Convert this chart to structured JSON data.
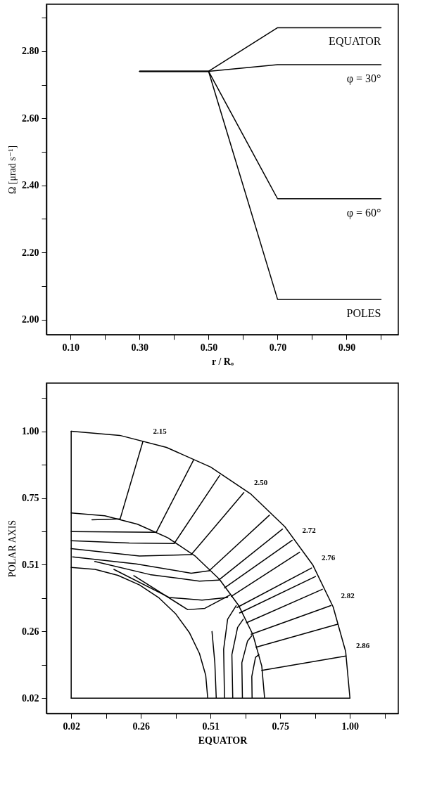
{
  "chart_data": [
    {
      "type": "line",
      "xlabel": "r / Rₒ",
      "ylabel": "Ω [μrad s⁻¹]",
      "xlim": [
        0.03,
        1.05
      ],
      "ylim": [
        1.955,
        2.94
      ],
      "xticks": [
        {
          "value": 0.1,
          "label": "0.10"
        },
        {
          "value": 0.2,
          "label": null
        },
        {
          "value": 0.3,
          "label": "0.30"
        },
        {
          "value": 0.4,
          "label": null
        },
        {
          "value": 0.5,
          "label": "0.50"
        },
        {
          "value": 0.6,
          "label": null
        },
        {
          "value": 0.7,
          "label": "0.70"
        },
        {
          "value": 0.8,
          "label": null
        },
        {
          "value": 0.9,
          "label": "0.90"
        },
        {
          "value": 1.0,
          "label": null
        }
      ],
      "yticks": [
        {
          "value": 2.0,
          "label": "2.00"
        },
        {
          "value": 2.1,
          "label": null
        },
        {
          "value": 2.2,
          "label": "2.20"
        },
        {
          "value": 2.3,
          "label": null
        },
        {
          "value": 2.4,
          "label": "2.40"
        },
        {
          "value": 2.5,
          "label": null
        },
        {
          "value": 2.6,
          "label": "2.60"
        },
        {
          "value": 2.7,
          "label": null
        },
        {
          "value": 2.8,
          "label": "2.80"
        },
        {
          "value": 2.9,
          "label": null
        }
      ],
      "series": [
        {
          "name": "EQUATOR",
          "color": "#000000",
          "x": [
            0.3,
            0.5,
            0.7,
            1.0
          ],
          "values": [
            2.74,
            2.74,
            2.87,
            2.87
          ]
        },
        {
          "name": "φ = 30°",
          "color": "#000000",
          "x": [
            0.3,
            0.5,
            0.7,
            1.0
          ],
          "values": [
            2.74,
            2.74,
            2.76,
            2.76
          ]
        },
        {
          "name": "φ = 60°",
          "color": "#000000",
          "x": [
            0.3,
            0.5,
            0.7,
            1.0
          ],
          "values": [
            2.74,
            2.74,
            2.36,
            2.36
          ]
        },
        {
          "name": "POLES",
          "color": "#000000",
          "x": [
            0.3,
            0.5,
            0.7,
            1.0
          ],
          "values": [
            2.74,
            2.74,
            2.06,
            2.06
          ]
        }
      ]
    },
    {
      "type": "line",
      "xlabel": "EQUATOR",
      "ylabel": "POLAR AXIS",
      "xlim": [
        -0.067,
        1.17
      ],
      "ylim": [
        -0.036,
        1.177
      ],
      "xticks": [
        {
          "value": 0.02,
          "label": "0.02"
        },
        {
          "value": 0.1425,
          "label": null
        },
        {
          "value": 0.265,
          "label": "0.26"
        },
        {
          "value": 0.3875,
          "label": null
        },
        {
          "value": 0.51,
          "label": "0.51"
        },
        {
          "value": 0.6325,
          "label": null
        },
        {
          "value": 0.755,
          "label": "0.75"
        },
        {
          "value": 0.8775,
          "label": null
        },
        {
          "value": 1.0,
          "label": "1.00"
        },
        {
          "value": 1.1225,
          "label": null
        }
      ],
      "yticks": [
        {
          "value": 0.02,
          "label": "0.02"
        },
        {
          "value": 0.1425,
          "label": null
        },
        {
          "value": 0.265,
          "label": "0.26"
        },
        {
          "value": 0.3875,
          "label": null
        },
        {
          "value": 0.51,
          "label": "0.51"
        },
        {
          "value": 0.6325,
          "label": null
        },
        {
          "value": 0.755,
          "label": "0.75"
        },
        {
          "value": 0.8775,
          "label": null
        },
        {
          "value": 1.0,
          "label": "1.00"
        },
        {
          "value": 1.1225,
          "label": null
        }
      ],
      "annotations": [
        {
          "text": "2.15",
          "x": 0.272,
          "y": 0.962
        },
        {
          "text": "2.50",
          "x": 0.627,
          "y": 0.775
        },
        {
          "text": "2.72",
          "x": 0.797,
          "y": 0.6
        },
        {
          "text": "2.76",
          "x": 0.865,
          "y": 0.498
        },
        {
          "text": "2.82",
          "x": 0.933,
          "y": 0.36
        },
        {
          "text": "2.86",
          "x": 0.986,
          "y": 0.175
        }
      ],
      "series": [
        {
          "color": "#000000",
          "x": [
            0.02,
            0.02
          ],
          "values": [
            0.02,
            1.0
          ]
        },
        {
          "color": "#000000",
          "x": [
            0.02,
            1.0
          ],
          "values": [
            0.02,
            0.02
          ]
        },
        {
          "color": "#000000",
          "x": [
            1.0,
            0.985,
            0.941,
            0.869,
            0.771,
            0.65,
            0.51,
            0.355,
            0.191,
            0.02
          ],
          "values": [
            0.02,
            0.191,
            0.355,
            0.51,
            0.65,
            0.771,
            0.869,
            0.941,
            0.985,
            1.0
          ]
        },
        {
          "color": "#000000",
          "x": [
            0.7,
            0.69,
            0.659,
            0.609,
            0.541,
            0.457,
            0.36,
            0.253,
            0.138,
            0.02
          ],
          "values": [
            0.02,
            0.138,
            0.253,
            0.36,
            0.457,
            0.541,
            0.609,
            0.659,
            0.69,
            0.7
          ]
        },
        {
          "color": "#000000",
          "x": [
            0.5,
            0.493,
            0.471,
            0.436,
            0.388,
            0.329,
            0.26,
            0.184,
            0.104,
            0.02
          ],
          "values": [
            0.02,
            0.104,
            0.184,
            0.26,
            0.329,
            0.388,
            0.436,
            0.471,
            0.493,
            0.5
          ]
        },
        {
          "color": "#000000",
          "x": [
            0.192,
            0.272
          ],
          "values": [
            0.678,
            0.962
          ]
        },
        {
          "color": "#000000",
          "x": [
            0.319,
            0.45
          ],
          "values": [
            0.629,
            0.894
          ]
        },
        {
          "color": "#000000",
          "x": [
            0.382,
            0.542
          ],
          "values": [
            0.588,
            0.838
          ]
        },
        {
          "color": "#000000",
          "x": [
            0.442,
            0.627
          ],
          "values": [
            0.547,
            0.775
          ]
        },
        {
          "color": "#000000",
          "x": [
            0.505,
            0.717
          ],
          "values": [
            0.488,
            0.692
          ]
        },
        {
          "color": "#000000",
          "x": [
            0.539,
            0.763
          ],
          "values": [
            0.454,
            0.641
          ]
        },
        {
          "color": "#000000",
          "x": [
            0.559,
            0.797
          ],
          "values": [
            0.425,
            0.6
          ]
        },
        {
          "color": "#000000",
          "x": [
            0.583,
            0.823
          ],
          "values": [
            0.394,
            0.556
          ]
        },
        {
          "color": "#000000",
          "x": [
            0.603,
            0.865
          ],
          "values": [
            0.353,
            0.498
          ]
        },
        {
          "color": "#000000",
          "x": [
            0.612,
            0.879
          ],
          "values": [
            0.333,
            0.467
          ]
        },
        {
          "color": "#000000",
          "x": [
            0.636,
            0.903
          ],
          "values": [
            0.297,
            0.42
          ]
        },
        {
          "color": "#000000",
          "x": [
            0.653,
            0.933
          ],
          "values": [
            0.255,
            0.36
          ]
        },
        {
          "color": "#000000",
          "x": [
            0.67,
            0.957
          ],
          "values": [
            0.207,
            0.292
          ]
        },
        {
          "color": "#000000",
          "x": [
            0.69,
            0.986
          ],
          "values": [
            0.122,
            0.175
          ]
        },
        {
          "color": "#000000",
          "x": [
            0.093,
            0.192
          ],
          "values": [
            0.675,
            0.678
          ]
        },
        {
          "color": "#000000",
          "x": [
            0.02,
            0.319
          ],
          "values": [
            0.632,
            0.629
          ]
        },
        {
          "color": "#000000",
          "x": [
            0.02,
            0.224,
            0.382
          ],
          "values": [
            0.598,
            0.59,
            0.588
          ]
        },
        {
          "color": "#000000",
          "x": [
            0.02,
            0.26,
            0.442
          ],
          "values": [
            0.569,
            0.542,
            0.547
          ]
        },
        {
          "color": "#000000",
          "x": [
            0.025,
            0.248,
            0.442,
            0.505
          ],
          "values": [
            0.539,
            0.513,
            0.479,
            0.488
          ]
        },
        {
          "color": "#000000",
          "x": [
            0.103,
            0.297,
            0.471,
            0.539
          ],
          "values": [
            0.522,
            0.474,
            0.45,
            0.454
          ]
        },
        {
          "color": "#000000",
          "x": [
            0.17,
            0.364,
            0.48,
            0.57
          ],
          "values": [
            0.493,
            0.39,
            0.38,
            0.39
          ]
        },
        {
          "color": "#000000",
          "x": [
            0.24,
            0.43,
            0.49,
            0.58
          ],
          "values": [
            0.47,
            0.345,
            0.35,
            0.4
          ]
        },
        {
          "color": "#000000",
          "x": [
            0.53,
            0.525,
            0.515
          ],
          "values": [
            0.02,
            0.15,
            0.265
          ]
        },
        {
          "color": "#000000",
          "x": [
            0.559,
            0.556,
            0.57,
            0.6
          ],
          "values": [
            0.02,
            0.2,
            0.31,
            0.36
          ]
        },
        {
          "color": "#000000",
          "x": [
            0.588,
            0.585,
            0.605,
            0.625
          ],
          "values": [
            0.02,
            0.18,
            0.28,
            0.31
          ]
        },
        {
          "color": "#000000",
          "x": [
            0.622,
            0.62,
            0.64,
            0.655
          ],
          "values": [
            0.02,
            0.15,
            0.23,
            0.25
          ]
        },
        {
          "color": "#000000",
          "x": [
            0.656,
            0.655,
            0.668,
            0.68
          ],
          "values": [
            0.02,
            0.1,
            0.17,
            0.18
          ]
        }
      ]
    }
  ]
}
